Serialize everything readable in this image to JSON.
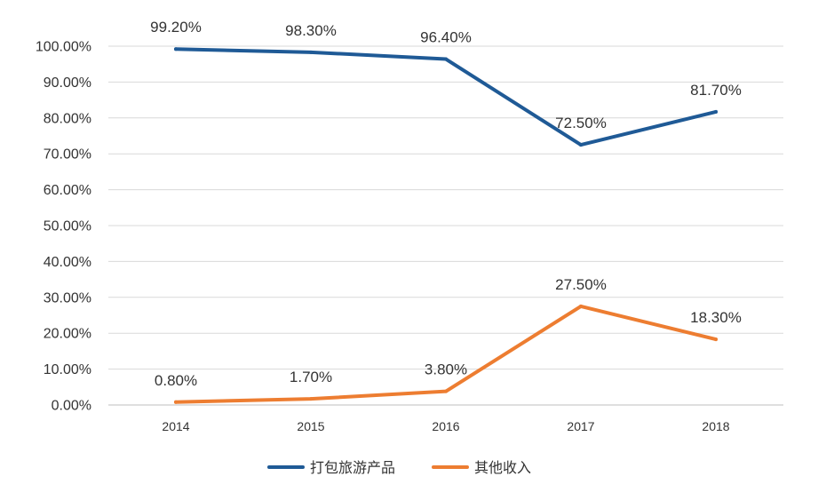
{
  "chart_data": {
    "type": "line",
    "title": "",
    "xlabel": "",
    "ylabel": "",
    "categories": [
      "2014",
      "2015",
      "2016",
      "2017",
      "2018"
    ],
    "ylim": [
      0,
      100
    ],
    "y_ticks": [
      "0.00%",
      "10.00%",
      "20.00%",
      "30.00%",
      "40.00%",
      "50.00%",
      "60.00%",
      "70.00%",
      "80.00%",
      "90.00%",
      "100.00%"
    ],
    "grid": true,
    "legend_position": "bottom",
    "series": [
      {
        "name": "打包旅游产品",
        "color": "#1f5a96",
        "values": [
          99.2,
          98.3,
          96.4,
          72.5,
          81.7
        ],
        "labels": [
          "99.20%",
          "98.30%",
          "96.40%",
          "72.50%",
          "81.70%"
        ]
      },
      {
        "name": "其他收入",
        "color": "#ed7d31",
        "values": [
          0.8,
          1.7,
          3.8,
          27.5,
          18.3
        ],
        "labels": [
          "0.80%",
          "1.70%",
          "3.80%",
          "27.50%",
          "18.30%"
        ]
      }
    ]
  }
}
